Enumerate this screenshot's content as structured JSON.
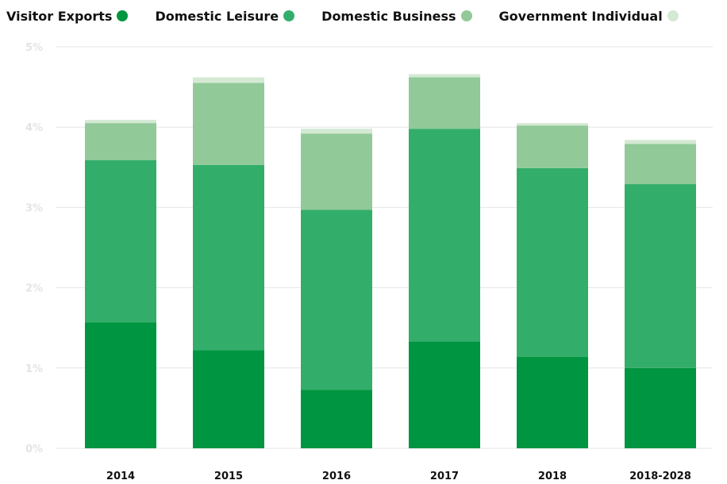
{
  "chart_data": {
    "type": "bar",
    "stacked": true,
    "categories": [
      "2014",
      "2015",
      "2016",
      "2017",
      "2018",
      "2018-2028"
    ],
    "series": [
      {
        "name": "Visitor Exports",
        "color": "#009540",
        "values": [
          1.57,
          1.22,
          0.73,
          1.33,
          1.14,
          1.0
        ]
      },
      {
        "name": "Domestic Leisure",
        "color": "#33ae6a",
        "values": [
          2.02,
          2.31,
          2.24,
          2.65,
          2.35,
          2.29
        ]
      },
      {
        "name": "Domestic Business",
        "color": "#91c999",
        "values": [
          0.46,
          1.02,
          0.95,
          0.64,
          0.53,
          0.5
        ]
      },
      {
        "name": "Government Individual",
        "color": "#d4e9d3",
        "values": [
          0.04,
          0.07,
          0.06,
          0.04,
          0.03,
          0.05
        ]
      }
    ],
    "ylim": [
      0,
      5
    ],
    "yticks": [
      {
        "value": 0,
        "label": "0%"
      },
      {
        "value": 1,
        "label": "1%"
      },
      {
        "value": 2,
        "label": "2%"
      },
      {
        "value": 3,
        "label": "3%"
      },
      {
        "value": 4,
        "label": "4%"
      },
      {
        "value": 5,
        "label": "5%"
      }
    ],
    "grid": true,
    "legend_position": "top-left"
  }
}
